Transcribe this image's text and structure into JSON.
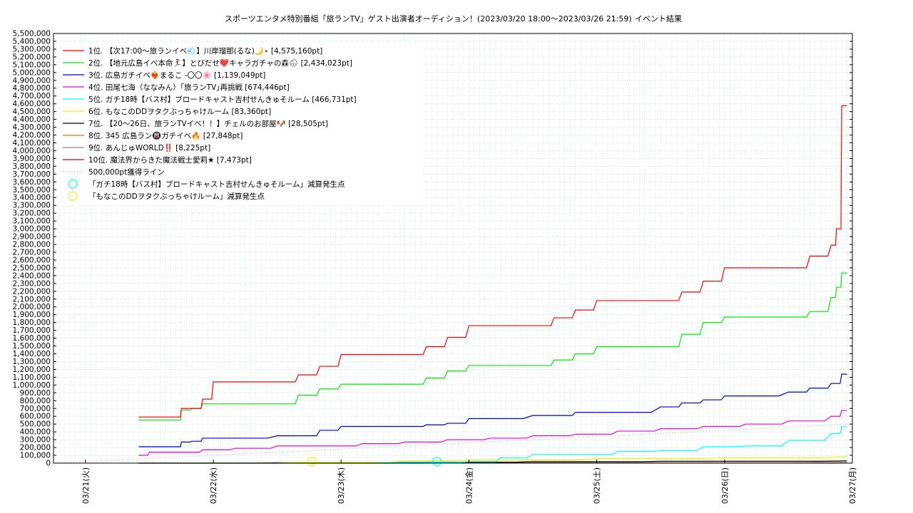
{
  "chart_data": {
    "type": "line",
    "title": "スポーツエンタメ特別番組「旅ランTV」ゲスト出演者オーディション！(2023/03/20 18:00～2023/03/26 21:59)",
    "subtitle": "イベント結果",
    "xlabel": "",
    "ylabel": "",
    "ylim": [
      0,
      5500000
    ],
    "ytick_step": 100000,
    "yticks": [
      "0",
      "100,000",
      "200,000",
      "300,000",
      "400,000",
      "500,000",
      "600,000",
      "700,000",
      "800,000",
      "900,000",
      "1,000,000",
      "1,100,000",
      "1,200,000",
      "1,300,000",
      "1,400,000",
      "1,500,000",
      "1,600,000",
      "1,700,000",
      "1,800,000",
      "1,900,000",
      "2,000,000",
      "2,100,000",
      "2,200,000",
      "2,300,000",
      "2,400,000",
      "2,500,000",
      "2,600,000",
      "2,700,000",
      "2,800,000",
      "2,900,000",
      "3,000,000",
      "3,100,000",
      "3,200,000",
      "3,300,000",
      "3,400,000",
      "3,500,000",
      "3,600,000",
      "3,700,000",
      "3,800,000",
      "3,900,000",
      "4,000,000",
      "4,100,000",
      "4,200,000",
      "4,300,000",
      "4,400,000",
      "4,500,000",
      "4,600,000",
      "4,700,000",
      "4,800,000",
      "4,900,000",
      "5,000,000",
      "5,100,000",
      "5,200,000",
      "5,300,000",
      "5,400,000",
      "5,500,000"
    ],
    "xlim": [
      "03/20 18:00",
      "03/27 00:00"
    ],
    "x_ticks": [
      "03/21(火)",
      "03/22(水)",
      "03/23(木)",
      "03/24(金)",
      "03/25(土)",
      "03/26(日)",
      "03/27(月)"
    ],
    "grid": true,
    "legend_position": "top-left",
    "series": [
      {
        "name": "1位. 【次17:00～旅ランイベ💨】川岸瑠那(るな)🌙⋆ [4,575,160pt]",
        "color": "#ff0000",
        "style": "solid",
        "x": [
          "03/21 10:00",
          "03/21 17:00",
          "03/21 18:00",
          "03/21 20:00",
          "03/21 22:00",
          "03/22 00:00",
          "03/22 12:00",
          "03/22 16:00",
          "03/22 20:00",
          "03/23 00:00",
          "03/23 12:00",
          "03/23 16:00",
          "03/23 20:00",
          "03/24 00:00",
          "03/24 12:00",
          "03/24 16:00",
          "03/24 20:00",
          "03/25 00:00",
          "03/25 12:00",
          "03/25 16:00",
          "03/25 20:00",
          "03/26 00:00",
          "03/26 12:00",
          "03/26 16:00",
          "03/26 20:00",
          "03/26 21:00",
          "03/26 22:00",
          "03/26 22:30",
          "03/26 23:00"
        ],
        "y": [
          590000,
          590000,
          700000,
          700000,
          820000,
          1040000,
          1040000,
          1130000,
          1240000,
          1390000,
          1390000,
          1490000,
          1610000,
          1760000,
          1760000,
          1860000,
          1960000,
          2080000,
          2080000,
          2190000,
          2330000,
          2500000,
          2500000,
          2650000,
          2790000,
          3000000,
          4575160,
          4575160,
          4575160
        ]
      },
      {
        "name": "2位. 【地元広島イベ本命🏃‍♀️】とびだせ❤️キャラガチャの森🌧 [2,434,023pt]",
        "color": "#00ee00",
        "style": "solid",
        "x": [
          "03/21 10:00",
          "03/21 17:00",
          "03/21 18:00",
          "03/21 20:00",
          "03/21 22:00",
          "03/22 00:00",
          "03/22 12:00",
          "03/22 16:00",
          "03/22 20:00",
          "03/23 00:00",
          "03/23 12:00",
          "03/23 16:00",
          "03/23 20:00",
          "03/24 00:00",
          "03/24 12:00",
          "03/24 16:00",
          "03/24 20:00",
          "03/25 00:00",
          "03/25 12:00",
          "03/25 16:00",
          "03/25 20:00",
          "03/26 00:00",
          "03/26 12:00",
          "03/26 16:00",
          "03/26 20:00",
          "03/26 21:00",
          "03/26 22:00",
          "03/26 23:00"
        ],
        "y": [
          550000,
          550000,
          680000,
          700000,
          760000,
          760000,
          760000,
          870000,
          950000,
          1010000,
          1010000,
          1090000,
          1180000,
          1250000,
          1250000,
          1320000,
          1400000,
          1490000,
          1490000,
          1650000,
          1800000,
          1870000,
          1870000,
          1940000,
          2120000,
          2250000,
          2434023,
          2434023
        ]
      },
      {
        "name": "3位. 広島ガチイベ❤️‍🔥まるこ -〇〇🌸 [1,139,049pt]",
        "color": "#0000cc",
        "style": "solid",
        "x": [
          "03/21 10:00",
          "03/21 17:00",
          "03/21 18:00",
          "03/21 20:00",
          "03/21 22:00",
          "03/22 00:00",
          "03/22 12:00",
          "03/22 16:00",
          "03/22 20:00",
          "03/23 00:00",
          "03/23 12:00",
          "03/23 16:00",
          "03/23 20:00",
          "03/24 00:00",
          "03/24 12:00",
          "03/24 16:00",
          "03/24 20:00",
          "03/25 00:00",
          "03/25 12:00",
          "03/25 16:00",
          "03/25 20:00",
          "03/26 00:00",
          "03/26 12:00",
          "03/26 16:00",
          "03/26 20:00",
          "03/26 22:00",
          "03/26 23:00"
        ],
        "y": [
          210000,
          210000,
          270000,
          280000,
          320000,
          320000,
          350000,
          350000,
          420000,
          470000,
          470000,
          490000,
          510000,
          570000,
          610000,
          610000,
          650000,
          650000,
          720000,
          770000,
          810000,
          860000,
          910000,
          960000,
          1020000,
          1139049,
          1139049
        ]
      },
      {
        "name": "4位. 田尾七海（ななみん）｢旅ランTV｣再挑戦 [674,446pt]",
        "color": "#ee00ee",
        "style": "solid",
        "x": [
          "03/21 10:00",
          "03/21 12:00",
          "03/21 18:00",
          "03/21 22:00",
          "03/22 04:00",
          "03/22 12:00",
          "03/22 20:00",
          "03/23 04:00",
          "03/23 12:00",
          "03/23 20:00",
          "03/24 04:00",
          "03/24 12:00",
          "03/24 20:00",
          "03/25 04:00",
          "03/25 12:00",
          "03/25 20:00",
          "03/26 04:00",
          "03/26 12:00",
          "03/26 20:00",
          "03/26 22:00",
          "03/26 23:00"
        ],
        "y": [
          100000,
          140000,
          140000,
          170000,
          190000,
          220000,
          220000,
          250000,
          270000,
          300000,
          320000,
          350000,
          370000,
          410000,
          440000,
          470000,
          500000,
          540000,
          600000,
          674446,
          674446
        ]
      },
      {
        "name": "5位. ガチ18時【バス村】ブロードキャスト吉村せんきゅそルーム [466,731pt]",
        "color": "#00ffff",
        "style": "solid",
        "x": [
          "03/21 10:00",
          "03/23 12:00",
          "03/24 00:00",
          "03/24 06:00",
          "03/24 12:00",
          "03/24 20:00",
          "03/25 04:00",
          "03/25 12:00",
          "03/25 20:00",
          "03/26 04:00",
          "03/26 12:00",
          "03/26 20:00",
          "03/26 22:00",
          "03/26 23:00"
        ],
        "y": [
          0,
          10000,
          20000,
          70000,
          110000,
          110000,
          150000,
          160000,
          210000,
          220000,
          290000,
          380000,
          466731,
          466731
        ]
      },
      {
        "name": "6位. もなこのDDヲタクぶっちゃけルーム [83,360pt]",
        "color": "#eeee00",
        "style": "solid",
        "x": [
          "03/21 10:00",
          "03/22 16:00",
          "03/23 12:00",
          "03/24 00:00",
          "03/25 00:00",
          "03/26 00:00",
          "03/26 23:00"
        ],
        "y": [
          0,
          10000,
          30000,
          40000,
          60000,
          70000,
          83360
        ]
      },
      {
        "name": "7位. 【20～26日、旅ランTVイベ！！】チェルのお部屋🐶 [28,505pt]",
        "color": "#000000",
        "style": "solid",
        "x": [
          "03/21 10:00",
          "03/22 12:00",
          "03/23 12:00",
          "03/24 12:00",
          "03/25 12:00",
          "03/26 23:00"
        ],
        "y": [
          0,
          5000,
          12000,
          18000,
          24000,
          28505
        ]
      },
      {
        "name": "8位. 345 広島ラン🚇ガチイベ🔥 [27,848pt]",
        "color": "#ff6600",
        "style": "solid",
        "x": [
          "03/21 10:00",
          "03/22 12:00",
          "03/23 12:00",
          "03/24 12:00",
          "03/25 12:00",
          "03/26 23:00"
        ],
        "y": [
          0,
          6000,
          12000,
          18000,
          22000,
          27848
        ]
      },
      {
        "name": "9位. あんじゅWORLD‼️ [8,225pt]",
        "color": "#888888",
        "style": "solid",
        "x": [
          "03/21 10:00",
          "03/24 00:00",
          "03/26 23:00"
        ],
        "y": [
          0,
          4000,
          8225
        ]
      },
      {
        "name": "10位. 魔法界からきた魔法戦士愛莉★ [7,473pt]",
        "color": "#dd0000",
        "style": "solid",
        "x": [
          "03/21 10:00",
          "03/24 00:00",
          "03/26 23:00"
        ],
        "y": [
          0,
          3000,
          7473
        ]
      },
      {
        "name": "500,000pt獲得ライン",
        "color": "#aaaaaa",
        "style": "dotted",
        "x": [
          "03/20 18:00",
          "03/27 00:00"
        ],
        "y": [
          0,
          500000
        ]
      }
    ],
    "markers": [
      {
        "name": "「ガチ18時【バス村】ブロードキャスト吉村せんきゅそルーム」減算発生点",
        "color": "#00ffff",
        "x": "03/23 18:00",
        "y": 20000
      },
      {
        "name": "「もなこのDDヲタクぶっちゃけルーム」減算発生点",
        "color": "#eeee00",
        "x": "03/22 18:30",
        "y": 20000
      }
    ]
  }
}
